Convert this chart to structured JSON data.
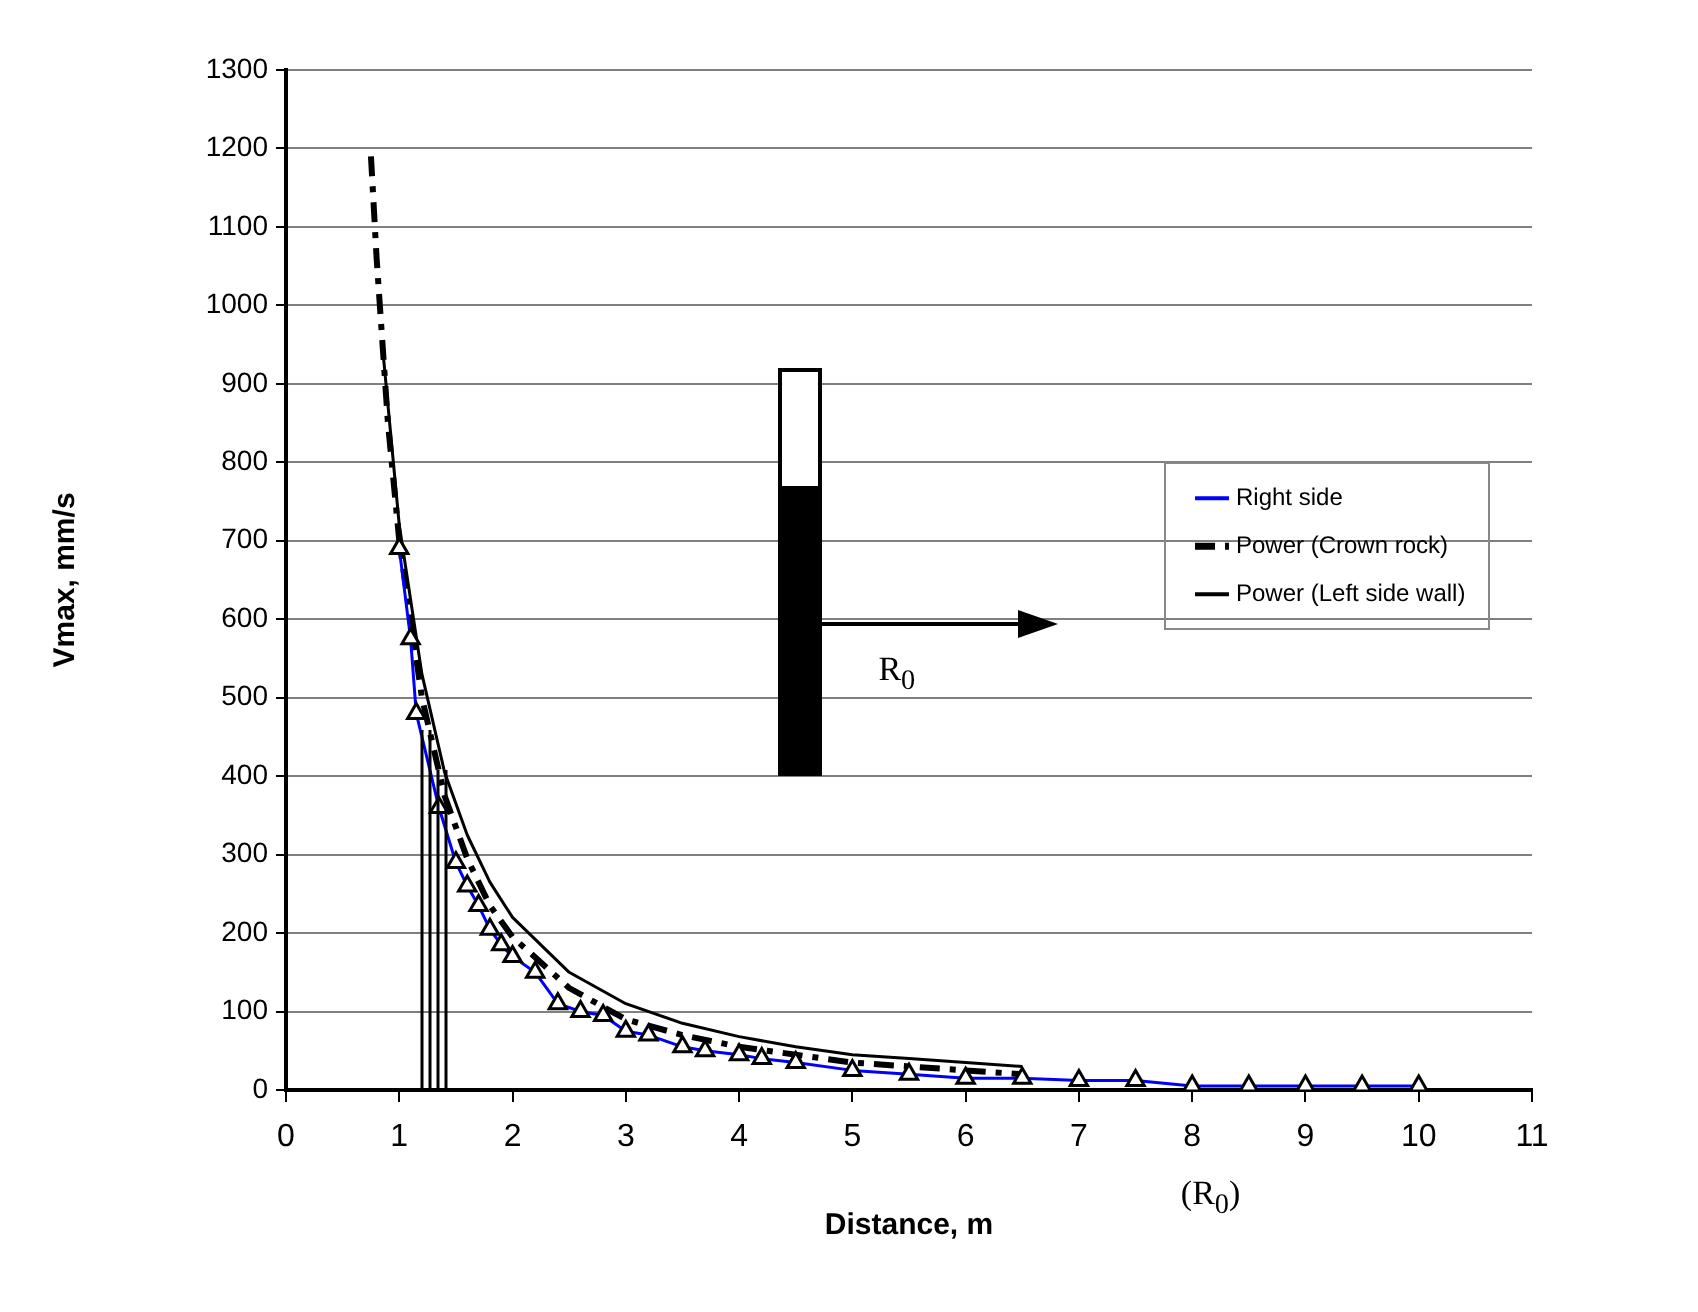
{
  "chart_data": {
    "type": "line",
    "xlabel": "Distance, m",
    "ylabel": "Vmax, mm/s",
    "xlim": [
      0,
      11
    ],
    "xticks": [
      0,
      1,
      2,
      3,
      4,
      5,
      6,
      7,
      8,
      9,
      10,
      11
    ],
    "ylim": [
      0,
      1300
    ],
    "yticks": [
      0,
      100,
      200,
      300,
      400,
      500,
      600,
      700,
      800,
      900,
      1000,
      1100,
      1200,
      1300
    ],
    "grid": "y",
    "legend": "right",
    "annotations": [
      "R$_{0}$",
      "(R$_{0}$)"
    ],
    "series": [
      {
        "name": "Right side",
        "color": "#0000ff",
        "marker": "triangle",
        "line_style": "solid",
        "x": [
          1.0,
          1.1,
          1.15,
          1.35,
          1.5,
          1.6,
          1.7,
          1.8,
          1.9,
          2.0,
          2.2,
          2.4,
          2.6,
          2.8,
          3.0,
          3.2,
          3.5,
          3.7,
          4.0,
          4.2,
          4.5,
          5.0,
          5.5,
          6.0,
          6.5,
          7.0,
          7.5,
          8.0,
          8.5,
          9.0,
          9.5,
          10.0
        ],
        "values": [
          690,
          575,
          480,
          360,
          290,
          260,
          235,
          205,
          185,
          170,
          150,
          110,
          100,
          95,
          75,
          70,
          55,
          50,
          45,
          40,
          35,
          25,
          20,
          15,
          15,
          12,
          12,
          5,
          5,
          5,
          5,
          5
        ]
      },
      {
        "name": "Power (Crown rock)",
        "color": "#000000",
        "marker": "none",
        "line_style": "dashed",
        "x": [
          0.75,
          0.8,
          0.9,
          1.0,
          1.2,
          1.4,
          1.6,
          1.8,
          2.0,
          2.5,
          3.0,
          3.5,
          4.0,
          4.5,
          5.0,
          5.5,
          6.0,
          6.5
        ],
        "values": [
          1190,
          1060,
          850,
          700,
          500,
          375,
          295,
          235,
          195,
          130,
          90,
          70,
          55,
          45,
          35,
          30,
          25,
          20
        ]
      },
      {
        "name": "Power (Left side wall)",
        "color": "#000000",
        "marker": "none",
        "line_style": "solid",
        "x": [
          0.85,
          1.0,
          1.2,
          1.4,
          1.6,
          1.8,
          2.0,
          2.5,
          3.0,
          3.5,
          4.0,
          4.5,
          5.0,
          5.5,
          6.0,
          6.5
        ],
        "values": [
          950,
          720,
          530,
          405,
          325,
          265,
          220,
          150,
          110,
          85,
          68,
          55,
          45,
          40,
          35,
          30
        ]
      }
    ]
  }
}
